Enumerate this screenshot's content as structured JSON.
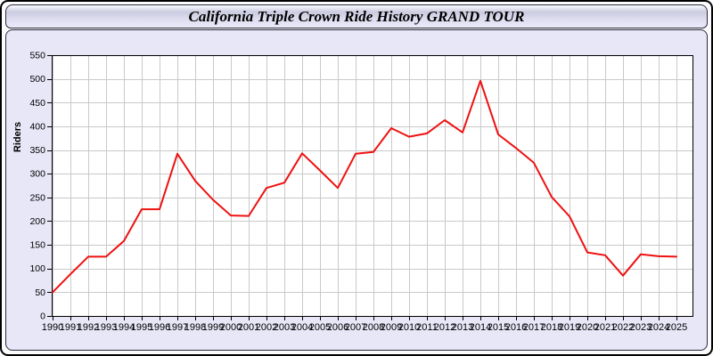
{
  "window": {
    "title": "California Triple Crown Ride History GRAND TOUR"
  },
  "chart_data": {
    "type": "line",
    "title": "California Triple Crown Ride History GRAND TOUR",
    "xlabel": "",
    "ylabel": "Riders",
    "ylim": [
      0,
      550
    ],
    "ytick_step": 50,
    "grid": "on",
    "legend_position": "none",
    "x": [
      1990,
      1991,
      1992,
      1993,
      1994,
      1995,
      1996,
      1997,
      1998,
      1999,
      2000,
      2001,
      2002,
      2003,
      2004,
      2005,
      2006,
      2007,
      2008,
      2009,
      2010,
      2011,
      2012,
      2013,
      2014,
      2015,
      2016,
      2017,
      2018,
      2019,
      2020,
      2021,
      2022,
      2023,
      2024,
      2025
    ],
    "series": [
      {
        "name": "Riders",
        "values": [
          50,
          88,
          125,
          125,
          158,
          225,
          225,
          342,
          285,
          245,
          212,
          211,
          270,
          281,
          343,
          307,
          270,
          342,
          346,
          396,
          378,
          385,
          413,
          387,
          496,
          383,
          354,
          323,
          251,
          210,
          134,
          128,
          85,
          130,
          126,
          125
        ]
      }
    ],
    "colors": {
      "line": "#ee1111",
      "grid": "#c9c9c9",
      "plot_background": "#ffffff",
      "panel_background": "#e7e7f8",
      "axis": "#000000",
      "label_text": "#000000"
    }
  }
}
